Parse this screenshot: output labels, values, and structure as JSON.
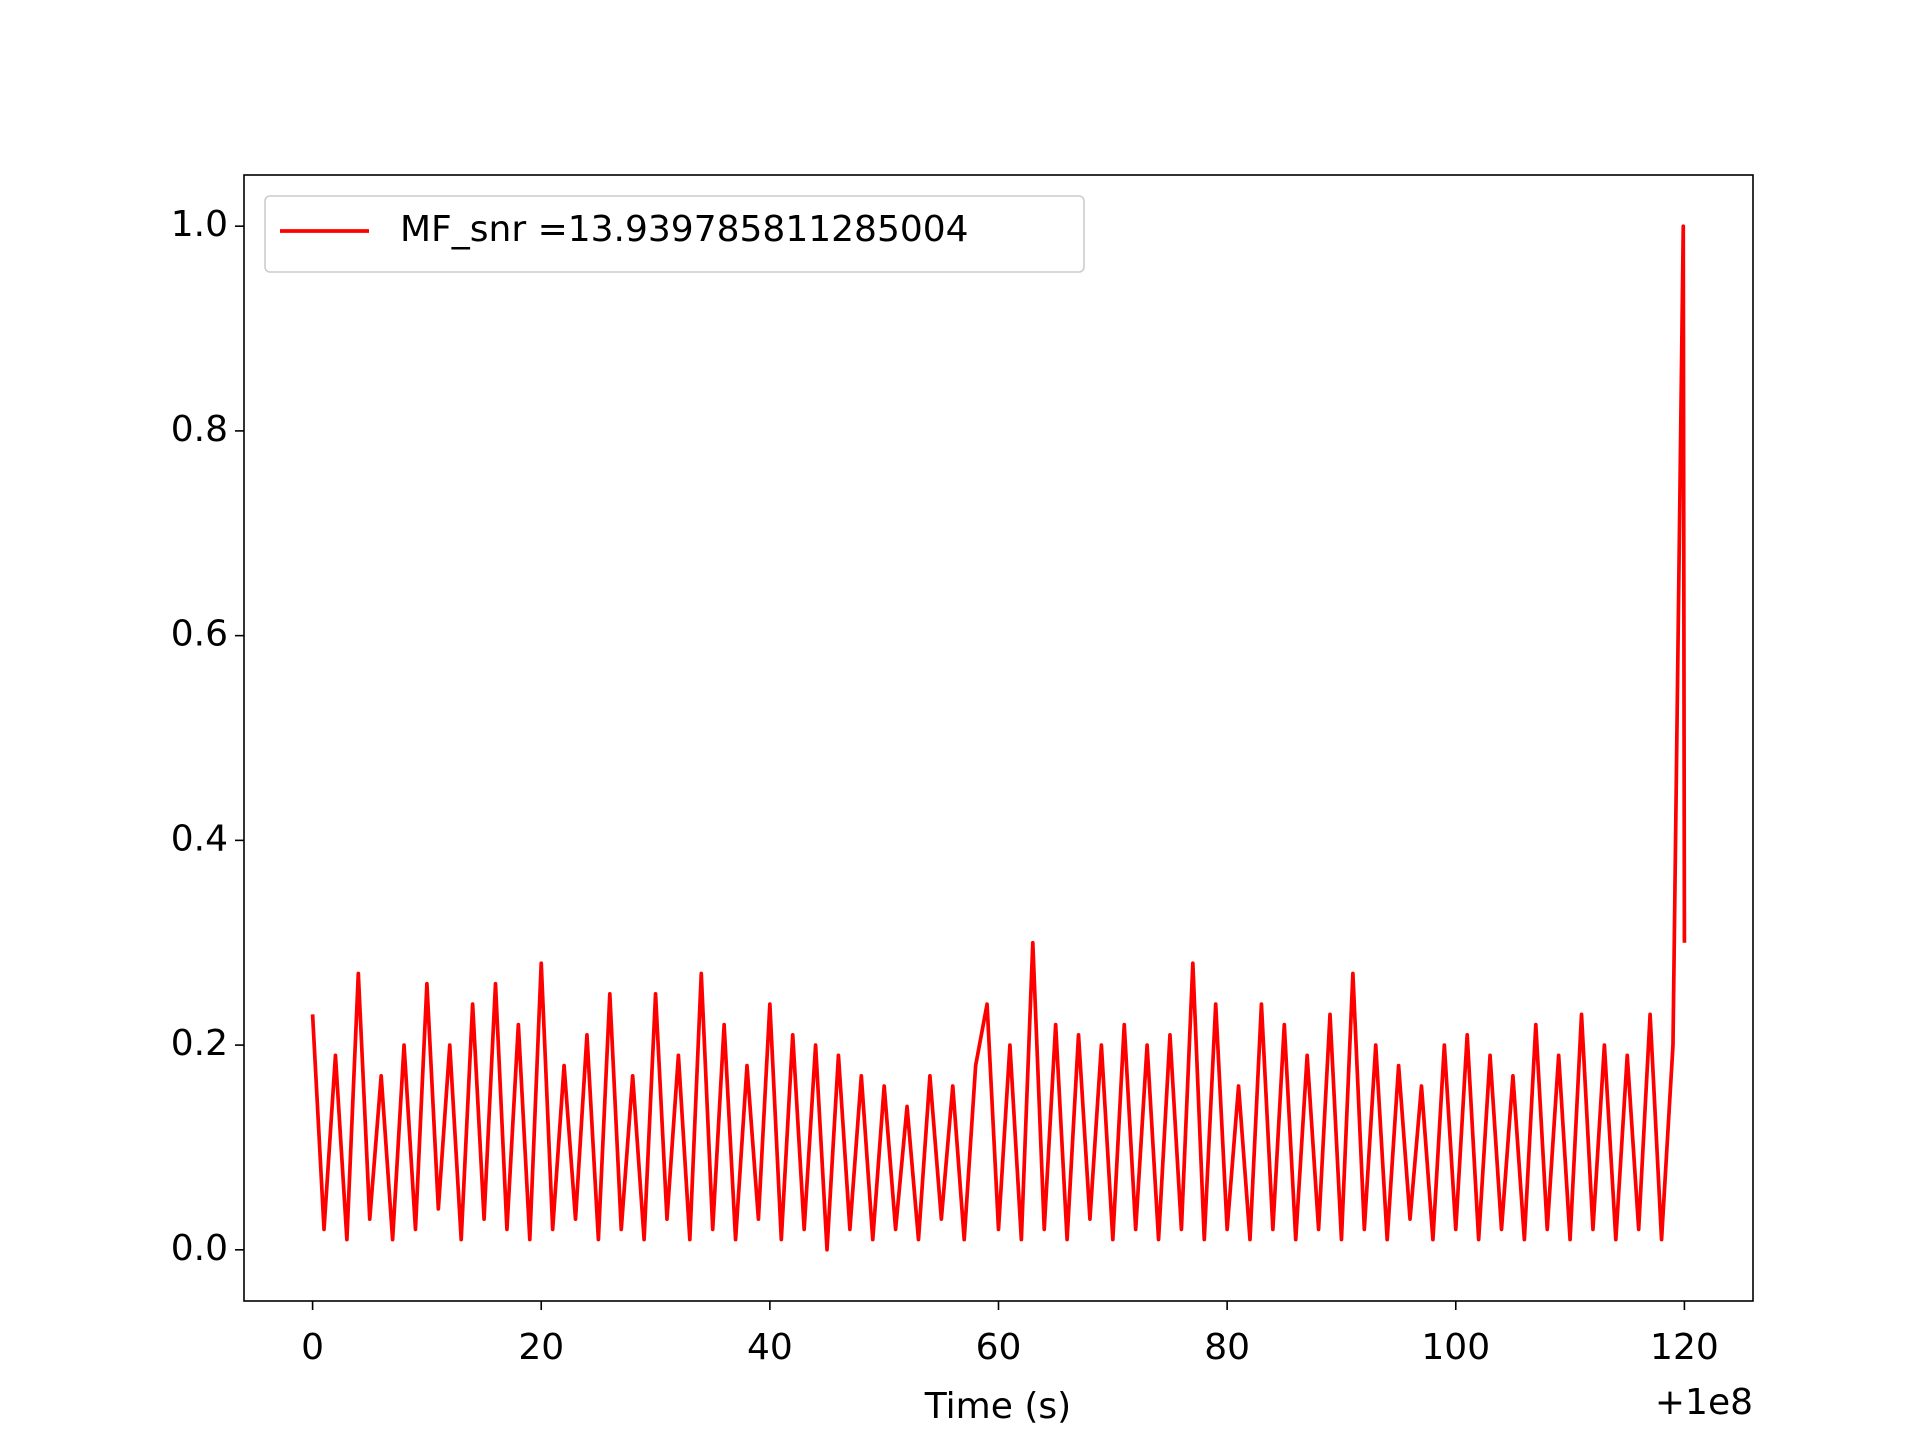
{
  "chart_data": {
    "type": "line",
    "xlabel": "Time (s)",
    "x_offset_label": "+1e8",
    "x": [
      0,
      1,
      2,
      3,
      4,
      5,
      6,
      7,
      8,
      9,
      10,
      11,
      12,
      13,
      14,
      15,
      16,
      17,
      18,
      19,
      20,
      21,
      22,
      23,
      24,
      25,
      26,
      27,
      28,
      29,
      30,
      31,
      32,
      33,
      34,
      35,
      36,
      37,
      38,
      39,
      40,
      41,
      42,
      43,
      44,
      45,
      46,
      47,
      48,
      49,
      50,
      51,
      52,
      53,
      54,
      55,
      56,
      57,
      58,
      59,
      60,
      61,
      62,
      63,
      64,
      65,
      66,
      67,
      68,
      69,
      70,
      71,
      72,
      73,
      74,
      75,
      76,
      77,
      78,
      79,
      80,
      81,
      82,
      83,
      84,
      85,
      86,
      87,
      88,
      89,
      90,
      91,
      92,
      93,
      94,
      95,
      96,
      97,
      98,
      99,
      100,
      101,
      102,
      103,
      104,
      105,
      106,
      107,
      108,
      109,
      110,
      111,
      112,
      113,
      114,
      115,
      116,
      117,
      118,
      119,
      119.9,
      120
    ],
    "series": [
      {
        "name": "MF_snr =13.939785811285004",
        "color": "#ff0000",
        "values": [
          0.23,
          0.02,
          0.19,
          0.01,
          0.27,
          0.03,
          0.17,
          0.01,
          0.2,
          0.02,
          0.26,
          0.04,
          0.2,
          0.01,
          0.24,
          0.03,
          0.26,
          0.02,
          0.22,
          0.01,
          0.28,
          0.02,
          0.18,
          0.03,
          0.21,
          0.01,
          0.25,
          0.02,
          0.17,
          0.01,
          0.25,
          0.03,
          0.19,
          0.01,
          0.27,
          0.02,
          0.22,
          0.01,
          0.18,
          0.03,
          0.24,
          0.01,
          0.21,
          0.02,
          0.2,
          0.0,
          0.19,
          0.02,
          0.17,
          0.01,
          0.16,
          0.02,
          0.14,
          0.01,
          0.17,
          0.03,
          0.16,
          0.01,
          0.18,
          0.24,
          0.02,
          0.2,
          0.01,
          0.3,
          0.02,
          0.22,
          0.01,
          0.21,
          0.03,
          0.2,
          0.01,
          0.22,
          0.02,
          0.2,
          0.01,
          0.21,
          0.02,
          0.28,
          0.01,
          0.24,
          0.02,
          0.16,
          0.01,
          0.24,
          0.02,
          0.22,
          0.01,
          0.19,
          0.02,
          0.23,
          0.01,
          0.27,
          0.02,
          0.2,
          0.01,
          0.18,
          0.03,
          0.16,
          0.01,
          0.2,
          0.02,
          0.21,
          0.01,
          0.19,
          0.02,
          0.17,
          0.01,
          0.22,
          0.02,
          0.19,
          0.01,
          0.23,
          0.02,
          0.2,
          0.01,
          0.19,
          0.02,
          0.23,
          0.01,
          0.2,
          1.0,
          0.3
        ]
      }
    ],
    "xlim": [
      -6,
      126
    ],
    "xticks": [
      0,
      20,
      40,
      60,
      80,
      100,
      120
    ],
    "ylim": [
      -0.05,
      1.05
    ],
    "yticks": [
      {
        "value": 0,
        "label": "0.0"
      },
      0.2,
      0.4,
      0.6,
      0.8,
      {
        "value": 1,
        "label": "1.0"
      }
    ],
    "legend": "upper left"
  }
}
